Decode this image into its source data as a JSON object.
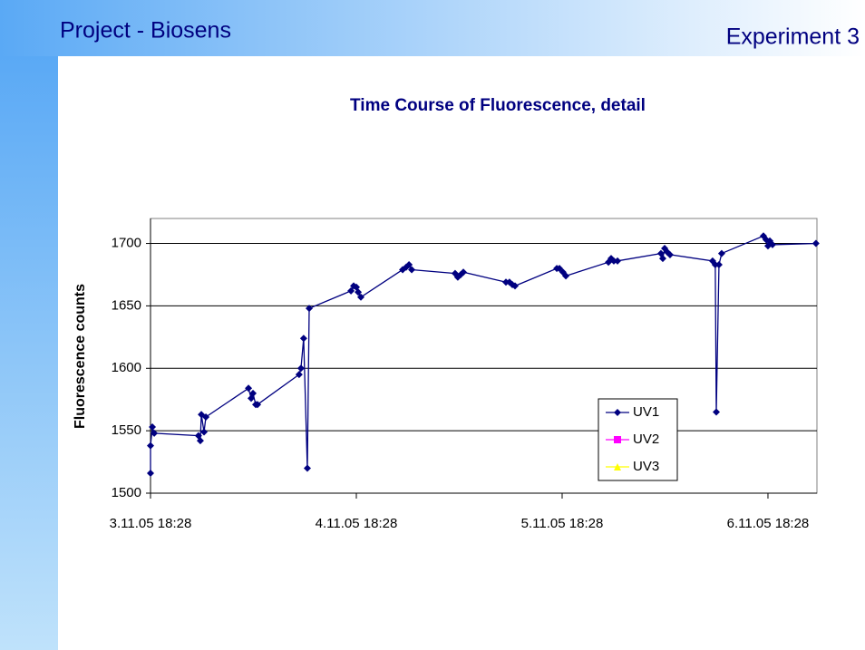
{
  "slide": {
    "title": "Project - Biosens",
    "label": "Experiment 3"
  },
  "chart_data": {
    "type": "line",
    "title": "Time Course of Fluorescence, detail",
    "y_label": "Fluorescence counts",
    "xlim": [
      38659.778,
      38663.016
    ],
    "xticks": [
      {
        "value": 38659.778,
        "label": "3.11.05 18:28"
      },
      {
        "value": 38660.778,
        "label": "4.11.05 18:28"
      },
      {
        "value": 38661.778,
        "label": "5.11.05 18:28"
      },
      {
        "value": 38662.778,
        "label": "6.11.05 18:28"
      }
    ],
    "ylim": [
      1500,
      1720
    ],
    "yticks": [
      1500,
      1550,
      1600,
      1650,
      1700
    ],
    "grid": true,
    "legend": "right",
    "series": [
      {
        "name": "UV1",
        "color": "#000080",
        "marker": "diamond",
        "x": [
          38659.778,
          38659.778,
          38659.787,
          38659.796,
          38660.011,
          38660.02,
          38660.025,
          38660.038,
          38660.047,
          38660.254,
          38660.267,
          38660.276,
          38660.289,
          38660.298,
          38660.5,
          38660.509,
          38660.522,
          38660.54,
          38660.549,
          38660.752,
          38660.765,
          38660.778,
          38660.787,
          38660.8,
          38661.003,
          38661.02,
          38661.034,
          38661.047,
          38661.258,
          38661.271,
          38661.285,
          38661.298,
          38661.505,
          38661.522,
          38661.536,
          38661.549,
          38661.752,
          38661.765,
          38661.782,
          38661.796,
          38662.003,
          38662.016,
          38662.029,
          38662.047,
          38662.258,
          38662.267,
          38662.276,
          38662.289,
          38662.302,
          38662.509,
          38662.522,
          38662.527,
          38662.54,
          38662.553,
          38662.756,
          38662.769,
          38662.778,
          38662.787,
          38662.8,
          38663.011
        ],
        "values": [
          1516,
          1538,
          1553,
          1548,
          1546,
          1542,
          1563,
          1549,
          1561,
          1584,
          1576,
          1580,
          1571,
          1571,
          1595,
          1600,
          1624,
          1520,
          1648,
          1662,
          1666,
          1665,
          1661,
          1657,
          1679,
          1681,
          1683,
          1679,
          1676,
          1673,
          1675,
          1677,
          1669,
          1669,
          1667,
          1666,
          1680,
          1680,
          1677,
          1674,
          1685,
          1688,
          1686,
          1686,
          1692,
          1688,
          1696,
          1693,
          1691,
          1686,
          1683,
          1565,
          1683,
          1692,
          1706,
          1703,
          1698,
          1702,
          1699,
          1700
        ]
      },
      {
        "name": "UV2",
        "color": "#ff00ff",
        "marker": "square",
        "x": [],
        "values": []
      },
      {
        "name": "UV3",
        "color": "#ffff00",
        "marker": "triangle",
        "x": [],
        "values": []
      }
    ]
  }
}
